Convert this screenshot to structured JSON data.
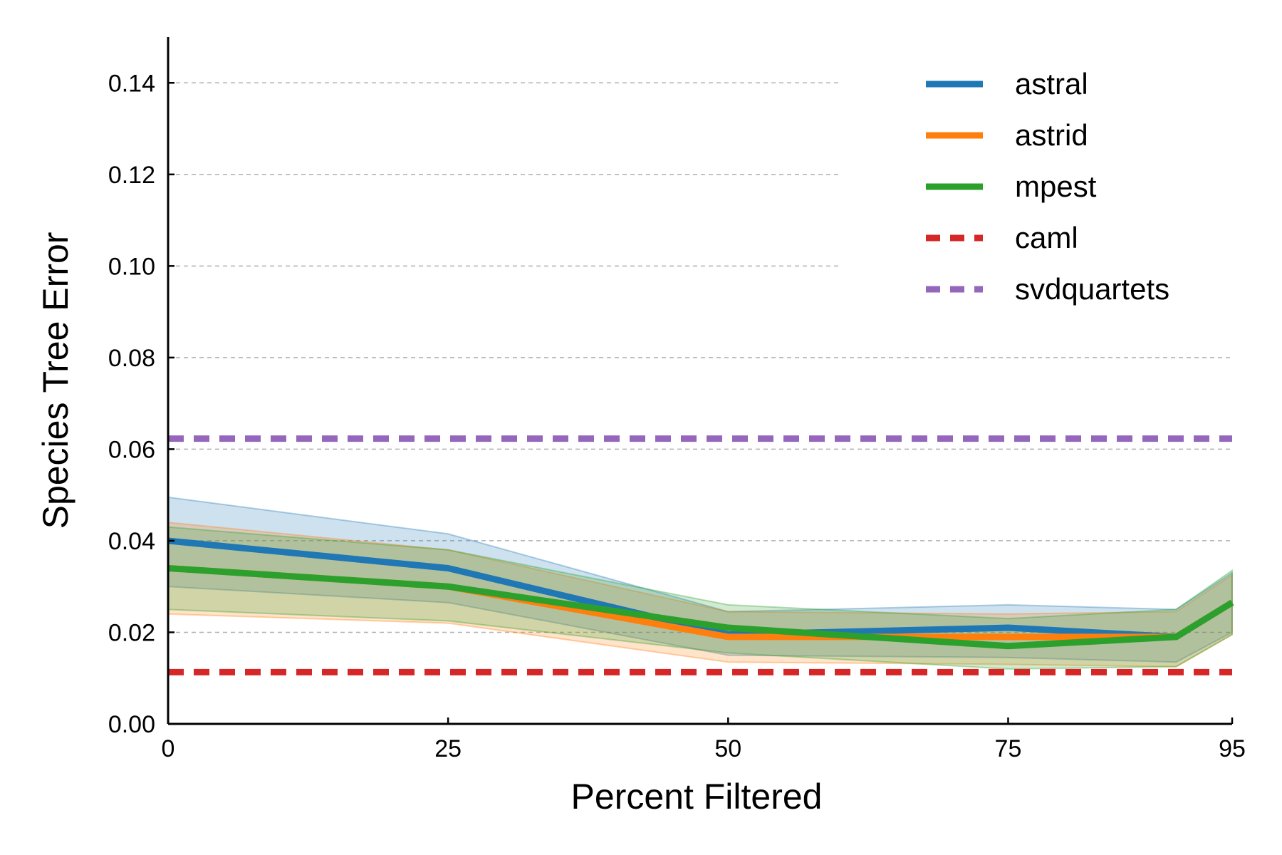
{
  "chart_data": {
    "type": "line",
    "xlabel": "Percent Filtered",
    "ylabel": "Species Tree Error",
    "xlim": [
      0,
      95
    ],
    "ylim": [
      0,
      0.15
    ],
    "x_ticks": [
      0,
      25,
      50,
      75,
      95
    ],
    "x_tick_labels": [
      "0",
      "25",
      "50",
      "75",
      "95"
    ],
    "y_ticks": [
      0,
      0.02,
      0.04,
      0.06,
      0.08,
      0.1,
      0.12,
      0.14
    ],
    "y_tick_labels": [
      "0.00",
      "0.02",
      "0.04",
      "0.06",
      "0.08",
      "0.10",
      "0.12",
      "0.14"
    ],
    "grid": "horizontal dashed",
    "legend_position": "top-right",
    "series": [
      {
        "name": "astral",
        "color": "#1f77b4",
        "style": "solid",
        "x": [
          0,
          25,
          50,
          75,
          90,
          95
        ],
        "values": [
          0.04,
          0.034,
          0.0195,
          0.021,
          0.019,
          0.0265
        ],
        "band_upper": [
          0.0495,
          0.0415,
          0.0245,
          0.026,
          0.025,
          0.033
        ],
        "band_lower": [
          0.03,
          0.0265,
          0.015,
          0.0145,
          0.0135,
          0.02
        ]
      },
      {
        "name": "astrid",
        "color": "#ff7f0e",
        "style": "solid",
        "x": [
          0,
          25,
          50,
          75,
          90,
          95
        ],
        "values": [
          0.034,
          0.03,
          0.019,
          0.019,
          0.019,
          0.0265
        ],
        "band_upper": [
          0.044,
          0.038,
          0.0245,
          0.024,
          0.0245,
          0.0325
        ],
        "band_lower": [
          0.024,
          0.022,
          0.0135,
          0.013,
          0.0125,
          0.0195
        ]
      },
      {
        "name": "mpest",
        "color": "#2ca02c",
        "style": "solid",
        "x": [
          0,
          25,
          50,
          75,
          90,
          95
        ],
        "values": [
          0.034,
          0.03,
          0.021,
          0.017,
          0.019,
          0.0265
        ],
        "band_upper": [
          0.043,
          0.038,
          0.026,
          0.023,
          0.025,
          0.0335
        ],
        "band_lower": [
          0.025,
          0.0225,
          0.0155,
          0.012,
          0.0125,
          0.0195
        ]
      },
      {
        "name": "caml",
        "color": "#d62728",
        "style": "dashed",
        "x": [
          0,
          95
        ],
        "values": [
          0.0113,
          0.0113
        ]
      },
      {
        "name": "svdquartets",
        "color": "#9467bd",
        "style": "dashed",
        "x": [
          0,
          95
        ],
        "values": [
          0.0623,
          0.0623
        ]
      }
    ]
  }
}
